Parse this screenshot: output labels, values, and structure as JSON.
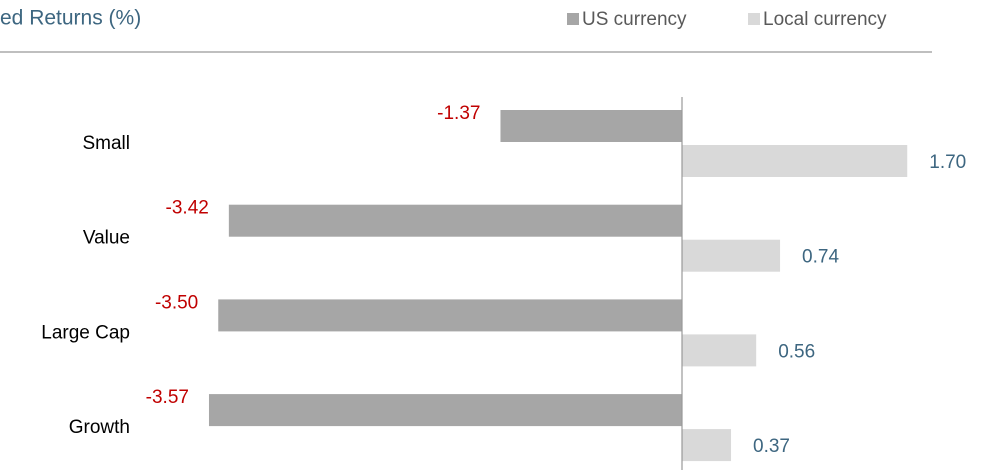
{
  "chart_data": {
    "type": "bar",
    "orientation": "horizontal",
    "title": "ed Returns (%)",
    "categories": [
      "Small",
      "Value",
      "Large Cap",
      "Growth"
    ],
    "series": [
      {
        "name": "US currency",
        "color": "#a6a6a6",
        "values": [
          -1.37,
          -3.42,
          -3.5,
          -3.57
        ],
        "value_labels": [
          "-1.37",
          "-3.42",
          "-3.50",
          "-3.57"
        ]
      },
      {
        "name": "Local currency",
        "color": "#d9d9d9",
        "values": [
          1.7,
          0.74,
          0.56,
          0.37
        ],
        "value_labels": [
          "1.70",
          "0.74",
          "0.56",
          "0.37"
        ]
      }
    ],
    "xlim": [
      -4,
      2
    ],
    "negative_label_color": "#c00000",
    "positive_label_color": "#3d6680",
    "legend": "top-right"
  }
}
